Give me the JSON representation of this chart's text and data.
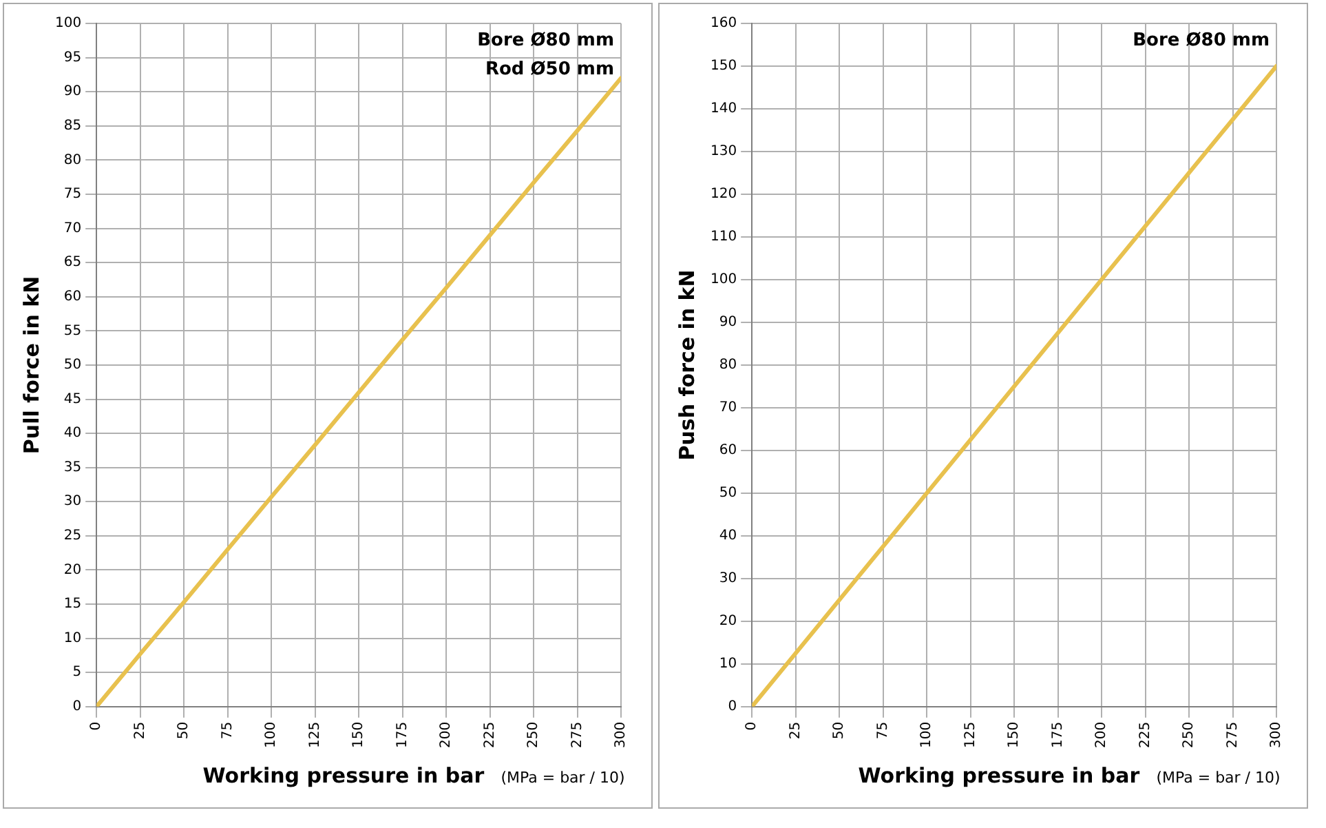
{
  "chart_data": [
    {
      "type": "line",
      "xlabel": "Working pressure in bar",
      "ylabel": "Pull force in kN",
      "annotations": [
        "Bore Ø80 mm",
        "Rod Ø50 mm",
        "(MPa = bar / 10)"
      ],
      "x": [
        0,
        25,
        50,
        75,
        100,
        125,
        150,
        175,
        200,
        225,
        250,
        275,
        300
      ],
      "series": [
        {
          "color": "#e8c14e",
          "values": [
            0,
            7.7,
            15.3,
            23,
            30.7,
            38.3,
            46,
            53.7,
            61.3,
            69,
            76.7,
            84.3,
            92
          ]
        }
      ],
      "xlim": [
        0,
        300
      ],
      "xticks": [
        0,
        25,
        50,
        75,
        100,
        125,
        150,
        175,
        200,
        225,
        250,
        275,
        300
      ],
      "ylim": [
        0,
        100
      ],
      "yticks": [
        0,
        5,
        10,
        15,
        20,
        25,
        30,
        35,
        40,
        45,
        50,
        55,
        60,
        65,
        70,
        75,
        80,
        85,
        90,
        95,
        100
      ],
      "grid": true,
      "legend": false,
      "marker": "none"
    },
    {
      "type": "line",
      "xlabel": "Working pressure in bar",
      "ylabel": "Push force in kN",
      "annotations": [
        "Bore Ø80 mm",
        "(MPa = bar / 10)"
      ],
      "x": [
        0,
        25,
        50,
        75,
        100,
        125,
        150,
        175,
        200,
        225,
        250,
        275,
        300
      ],
      "series": [
        {
          "color": "#e8c14e",
          "values": [
            0,
            12.5,
            25,
            37.5,
            50,
            62.5,
            75,
            87.5,
            100,
            112.5,
            125,
            137.5,
            150
          ]
        }
      ],
      "xlim": [
        0,
        300
      ],
      "xticks": [
        0,
        25,
        50,
        75,
        100,
        125,
        150,
        175,
        200,
        225,
        250,
        275,
        300
      ],
      "ylim": [
        0,
        160
      ],
      "yticks": [
        0,
        10,
        20,
        30,
        40,
        50,
        60,
        70,
        80,
        90,
        100,
        110,
        120,
        130,
        140,
        150,
        160
      ],
      "grid": true,
      "legend": false,
      "marker": "none"
    }
  ]
}
